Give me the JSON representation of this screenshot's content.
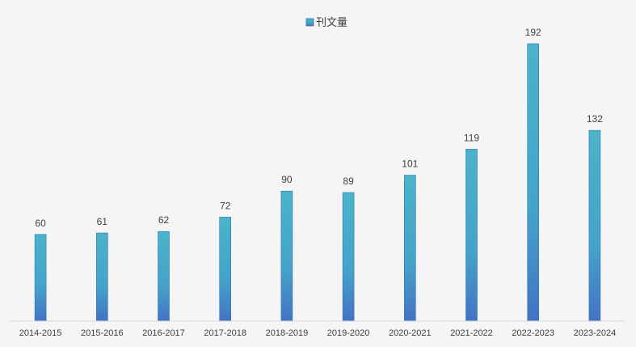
{
  "chart_data": {
    "type": "bar",
    "categories": [
      "2014-2015",
      "2015-2016",
      "2016-2017",
      "2017-2018",
      "2018-2019",
      "2019-2020",
      "2020-2021",
      "2021-2022",
      "2022-2023",
      "2023-2024"
    ],
    "series": [
      {
        "name": "刊文量",
        "values": [
          60,
          61,
          62,
          72,
          90,
          89,
          101,
          119,
          192,
          132
        ]
      }
    ],
    "ylim": [
      0,
      192
    ],
    "grid": false,
    "legend": "top",
    "data_labels": true,
    "colors": {
      "bar_top": "#4ab3c9",
      "bar_bottom": "#4472c4",
      "bar_stroke": "#2e75b6",
      "axis": "#d9d9d9",
      "text": "#404040",
      "background": "#f5f5f5"
    }
  }
}
